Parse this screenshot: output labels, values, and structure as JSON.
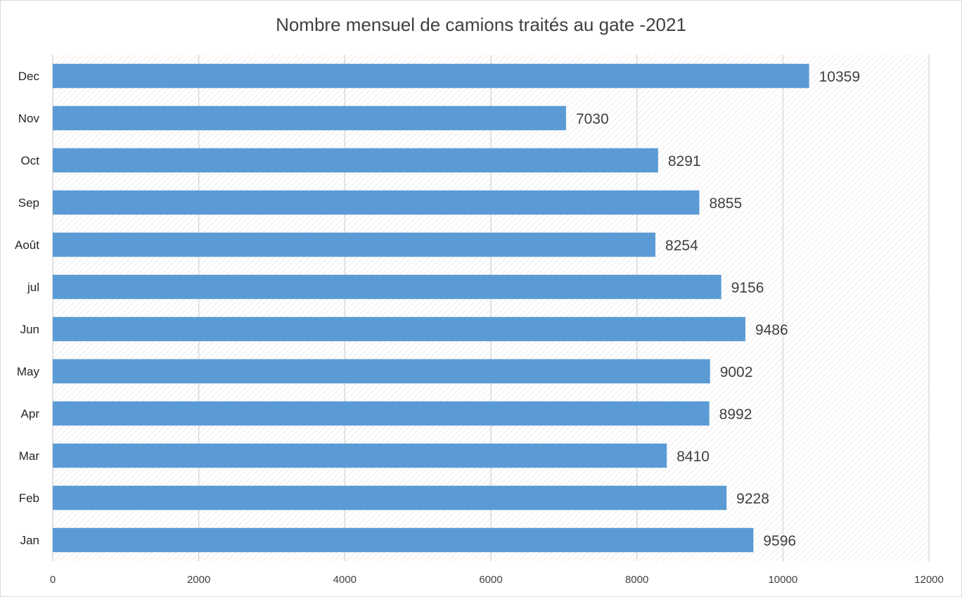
{
  "chart_data": {
    "type": "bar",
    "orientation": "horizontal",
    "title": "Nombre mensuel de camions traités au gate -2021",
    "categories": [
      "Jan",
      "Feb",
      "Mar",
      "Apr",
      "May",
      "Jun",
      "jul",
      "Août",
      "Sep",
      "Oct",
      "Nov",
      "Dec"
    ],
    "values": [
      9596,
      9228,
      8410,
      8992,
      9002,
      9486,
      9156,
      8254,
      8855,
      8291,
      7030,
      10359
    ],
    "data_labels": [
      "9596",
      "9228",
      "8410",
      "8992",
      "9002",
      "9486",
      "9156",
      "8254",
      "8855",
      "8291",
      "7030",
      "10359"
    ],
    "xlim": [
      0,
      12000
    ],
    "x_ticks": [
      0,
      2000,
      4000,
      6000,
      8000,
      10000,
      12000
    ],
    "x_tick_labels": [
      "0",
      "2000",
      "4000",
      "6000",
      "8000",
      "10000",
      "12000"
    ],
    "xlabel": "",
    "ylabel": "",
    "grid": "vertical",
    "legend": "none",
    "colors": {
      "bar": "#5b9bd5",
      "gridline": "#d9d9d9",
      "plot_hatch": "#e0e0e0",
      "text": "#404040"
    }
  }
}
